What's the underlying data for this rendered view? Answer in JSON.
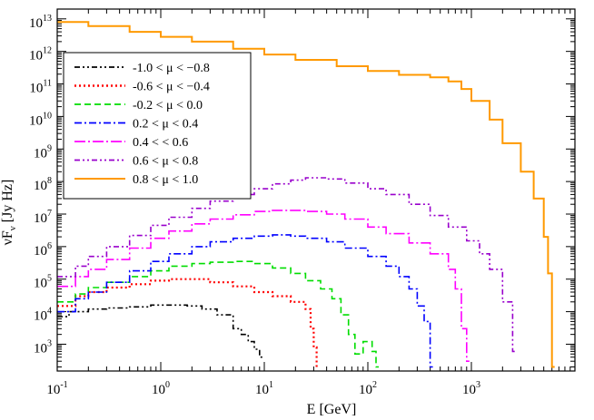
{
  "chart_data": {
    "type": "line",
    "title": "",
    "xlabel": "E [GeV]",
    "ylabel": "νF_ν [Jy Hz]",
    "ylabel_main": "νF",
    "ylabel_sub": "ν",
    "ylabel_unit": " [Jy Hz]",
    "xscale": "log",
    "yscale": "log",
    "xlim": [
      0.1,
      10000
    ],
    "ylim": [
      150,
      20000000000000
    ],
    "x_major_ticks": [
      0.1,
      1,
      10,
      100,
      1000
    ],
    "x_tick_labels": [
      {
        "base": "10",
        "exp": "-1"
      },
      {
        "base": "10",
        "exp": "0"
      },
      {
        "base": "10",
        "exp": "1"
      },
      {
        "base": "10",
        "exp": "2"
      },
      {
        "base": "10",
        "exp": "3"
      }
    ],
    "y_major_ticks": [
      1000,
      10000,
      100000,
      1000000,
      10000000,
      100000000,
      1000000000,
      10000000000,
      100000000000,
      1000000000000,
      10000000000000
    ],
    "y_tick_labels": [
      {
        "base": "10",
        "exp": "3"
      },
      {
        "base": "10",
        "exp": "4"
      },
      {
        "base": "10",
        "exp": "5"
      },
      {
        "base": "10",
        "exp": "6"
      },
      {
        "base": "10",
        "exp": "7"
      },
      {
        "base": "10",
        "exp": "8"
      },
      {
        "base": "10",
        "exp": "9"
      },
      {
        "base": "10",
        "exp": "10"
      },
      {
        "base": "10",
        "exp": "11"
      },
      {
        "base": "10",
        "exp": "12"
      },
      {
        "base": "10",
        "exp": "13"
      }
    ],
    "legend_position": "top-left",
    "series": [
      {
        "name": "-1.0 < μ < −0.8",
        "color": "#000000",
        "style": "dashdotdot",
        "points": [
          [
            0.1,
            7000
          ],
          [
            0.13,
            10000
          ],
          [
            0.2,
            12000
          ],
          [
            0.3,
            13000
          ],
          [
            0.5,
            14000
          ],
          [
            0.8,
            16000
          ],
          [
            1.2,
            16000
          ],
          [
            1.8,
            15000
          ],
          [
            2.5,
            12000
          ],
          [
            3.5,
            8000
          ],
          [
            5,
            3000
          ],
          [
            6,
            2000
          ],
          [
            7,
            1200
          ],
          [
            8,
            700
          ],
          [
            9,
            400
          ]
        ]
      },
      {
        "name": "-0.6 < μ < −0.4",
        "color": "#ff0000",
        "style": "dotted",
        "points": [
          [
            0.1,
            15000
          ],
          [
            0.15,
            30000
          ],
          [
            0.2,
            40000
          ],
          [
            0.3,
            55000
          ],
          [
            0.5,
            70000
          ],
          [
            0.8,
            90000
          ],
          [
            1.2,
            100000
          ],
          [
            2,
            100000
          ],
          [
            3,
            80000
          ],
          [
            5,
            60000
          ],
          [
            8,
            40000
          ],
          [
            12,
            30000
          ],
          [
            18,
            20000
          ],
          [
            25,
            12000
          ],
          [
            28,
            3000
          ],
          [
            30,
            800
          ],
          [
            32,
            200
          ]
        ]
      },
      {
        "name": "-0.2 < μ < 0.0",
        "color": "#00dd00",
        "style": "dashed",
        "points": [
          [
            0.1,
            20000
          ],
          [
            0.15,
            35000
          ],
          [
            0.2,
            55000
          ],
          [
            0.3,
            80000
          ],
          [
            0.5,
            120000
          ],
          [
            0.8,
            180000
          ],
          [
            1.2,
            250000
          ],
          [
            2,
            300000
          ],
          [
            3,
            330000
          ],
          [
            5,
            350000
          ],
          [
            8,
            300000
          ],
          [
            12,
            220000
          ],
          [
            18,
            150000
          ],
          [
            25,
            90000
          ],
          [
            35,
            50000
          ],
          [
            45,
            25000
          ],
          [
            55,
            8000
          ],
          [
            65,
            2000
          ],
          [
            75,
            500
          ],
          [
            90,
            1200
          ],
          [
            110,
            600
          ],
          [
            120,
            200
          ]
        ]
      },
      {
        "name": "0.2 < μ < 0.4",
        "color": "#0000ff",
        "style": "dashdot",
        "points": [
          [
            0.1,
            10000
          ],
          [
            0.15,
            25000
          ],
          [
            0.2,
            40000
          ],
          [
            0.3,
            80000
          ],
          [
            0.5,
            180000
          ],
          [
            0.8,
            350000
          ],
          [
            1.2,
            600000
          ],
          [
            2,
            1000000
          ],
          [
            3,
            1400000
          ],
          [
            5,
            1800000
          ],
          [
            8,
            2100000
          ],
          [
            12,
            2300000
          ],
          [
            18,
            2100000
          ],
          [
            25,
            1800000
          ],
          [
            40,
            1400000
          ],
          [
            60,
            900000
          ],
          [
            100,
            500000
          ],
          [
            150,
            250000
          ],
          [
            200,
            120000
          ],
          [
            250,
            50000
          ],
          [
            300,
            15000
          ],
          [
            350,
            5000
          ],
          [
            400,
            200
          ]
        ]
      },
      {
        "name": "0.4 < < 0.6",
        "color": "#ff00ff",
        "style": "longdashdot",
        "points": [
          [
            0.1,
            60000
          ],
          [
            0.15,
            120000
          ],
          [
            0.2,
            200000
          ],
          [
            0.3,
            400000
          ],
          [
            0.5,
            900000
          ],
          [
            0.8,
            1800000
          ],
          [
            1.2,
            3000000
          ],
          [
            2,
            5000000
          ],
          [
            3,
            7000000
          ],
          [
            5,
            9500000
          ],
          [
            8,
            12000000
          ],
          [
            12,
            13000000
          ],
          [
            18,
            13000000
          ],
          [
            25,
            12000000
          ],
          [
            40,
            10000000
          ],
          [
            60,
            7000000
          ],
          [
            100,
            4000000
          ],
          [
            150,
            2500000
          ],
          [
            250,
            1300000
          ],
          [
            400,
            600000
          ],
          [
            600,
            200000
          ],
          [
            700,
            50000
          ],
          [
            800,
            3000
          ],
          [
            900,
            300
          ]
        ]
      },
      {
        "name": "0.6 < μ < 0.8",
        "color": "#9900cc",
        "style": "dashdotdot",
        "points": [
          [
            0.1,
            120000
          ],
          [
            0.15,
            250000
          ],
          [
            0.2,
            500000
          ],
          [
            0.3,
            1000000
          ],
          [
            0.5,
            2200000
          ],
          [
            0.8,
            4500000
          ],
          [
            1.2,
            8000000
          ],
          [
            2,
            15000000
          ],
          [
            3,
            25000000
          ],
          [
            5,
            40000000
          ],
          [
            8,
            60000000
          ],
          [
            12,
            85000000
          ],
          [
            18,
            110000000
          ],
          [
            25,
            130000000
          ],
          [
            40,
            120000000
          ],
          [
            60,
            90000000
          ],
          [
            100,
            60000000
          ],
          [
            150,
            40000000
          ],
          [
            250,
            20000000
          ],
          [
            400,
            9000000
          ],
          [
            600,
            4000000
          ],
          [
            900,
            1500000
          ],
          [
            1200,
            600000
          ],
          [
            1500,
            200000
          ],
          [
            2000,
            20000
          ],
          [
            2500,
            600
          ]
        ]
      },
      {
        "name": "0.8 < μ < 1.0",
        "color": "#ff9900",
        "style": "solid",
        "points": [
          [
            0.1,
            8000000000000
          ],
          [
            0.2,
            6000000000000
          ],
          [
            0.5,
            4000000000000
          ],
          [
            1,
            2800000000000
          ],
          [
            2,
            2000000000000
          ],
          [
            5,
            1200000000000
          ],
          [
            10,
            800000000000
          ],
          [
            20,
            550000000000
          ],
          [
            50,
            350000000000
          ],
          [
            100,
            250000000000
          ],
          [
            200,
            190000000000
          ],
          [
            400,
            160000000000
          ],
          [
            600,
            120000000000
          ],
          [
            800,
            70000000000
          ],
          [
            1000,
            30000000000
          ],
          [
            1500,
            8000000000
          ],
          [
            2000,
            1500000000
          ],
          [
            3000,
            200000000
          ],
          [
            4000,
            30000000
          ],
          [
            5000,
            2000000
          ],
          [
            5500,
            150000
          ],
          [
            6000,
            200
          ]
        ]
      }
    ]
  }
}
